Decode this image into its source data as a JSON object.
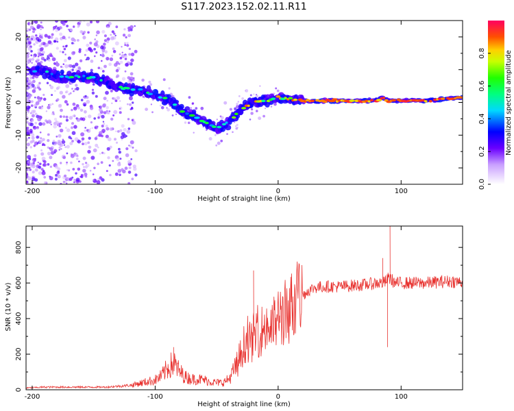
{
  "title": "S117.2023.152.02.11.R11",
  "colors": {
    "snr_line": "#e8312e",
    "spectrogram_colormap": "rainbow",
    "axes": "#000000"
  },
  "chart_data": [
    {
      "type": "heatmap",
      "title": "S117.2023.152.02.11.R11",
      "xlabel": "Height of straight line (km)",
      "ylabel": "Frequency (Hz)",
      "xlim": [
        -205,
        150
      ],
      "ylim": [
        -25,
        25
      ],
      "xticks": [
        -200,
        -100,
        0,
        100
      ],
      "yticks": [
        -20,
        -10,
        0,
        10,
        20
      ],
      "colorbar": {
        "label": "Normalized spectral amplitude",
        "range": [
          0,
          1
        ],
        "ticks": [
          0.0,
          0.2,
          0.4,
          0.6,
          0.8
        ]
      },
      "ridge": {
        "x": [
          -200,
          -190,
          -180,
          -170,
          -160,
          -150,
          -140,
          -130,
          -120,
          -110,
          -100,
          -90,
          -80,
          -70,
          -60,
          -50,
          -40,
          -30,
          -20,
          -10,
          0,
          10,
          20,
          40,
          60,
          80,
          85,
          90,
          100,
          120,
          150
        ],
        "y": [
          9.5,
          9.5,
          8,
          7.5,
          8,
          7.5,
          6,
          5,
          4,
          3.5,
          2,
          1,
          -2,
          -4,
          -6,
          -8,
          -6,
          -2,
          0,
          0.5,
          1.5,
          1,
          0.5,
          0.5,
          0.5,
          0.5,
          1.5,
          0.5,
          0.5,
          0.5,
          1.5
        ]
      }
    },
    {
      "type": "line",
      "xlabel": "Height of straight line (km)",
      "ylabel": "SNR (10 * v/v)",
      "xlim": [
        -205,
        150
      ],
      "ylim": [
        0,
        920
      ],
      "xticks": [
        -200,
        -100,
        0,
        100
      ],
      "yticks": [
        0,
        200,
        400,
        600,
        800
      ],
      "series": [
        {
          "x": [
            -205,
            -190,
            -175,
            -160,
            -140,
            -120,
            -110,
            -100,
            -95,
            -90,
            -85,
            -80,
            -75,
            -70,
            -65,
            -60,
            -55,
            -50,
            -45,
            -40,
            -35,
            -30,
            -28,
            -25,
            -22,
            -20,
            -17,
            -14,
            -10,
            -7,
            -4,
            -2,
            0,
            2,
            5,
            8,
            12,
            15,
            20,
            25,
            30,
            40,
            50,
            60,
            70,
            80,
            85,
            88,
            90,
            92,
            95,
            100,
            110,
            120,
            130,
            140,
            150
          ],
          "y": [
            10,
            15,
            15,
            15,
            15,
            25,
            40,
            55,
            75,
            120,
            150,
            100,
            70,
            60,
            60,
            55,
            45,
            40,
            40,
            60,
            120,
            200,
            250,
            280,
            260,
            300,
            330,
            330,
            350,
            350,
            360,
            380,
            400,
            420,
            430,
            450,
            480,
            500,
            530,
            560,
            575,
            580,
            580,
            585,
            590,
            600,
            600,
            610,
            630,
            620,
            600,
            600,
            600,
            600,
            605,
            610,
            605
          ]
        }
      ],
      "spikes": [
        {
          "x": -85,
          "y": 240
        },
        {
          "x": -20,
          "y": 670
        },
        {
          "x": 85,
          "y": 740
        },
        {
          "x": 89,
          "y": 240
        },
        {
          "x": 91,
          "y": 920
        }
      ]
    }
  ]
}
